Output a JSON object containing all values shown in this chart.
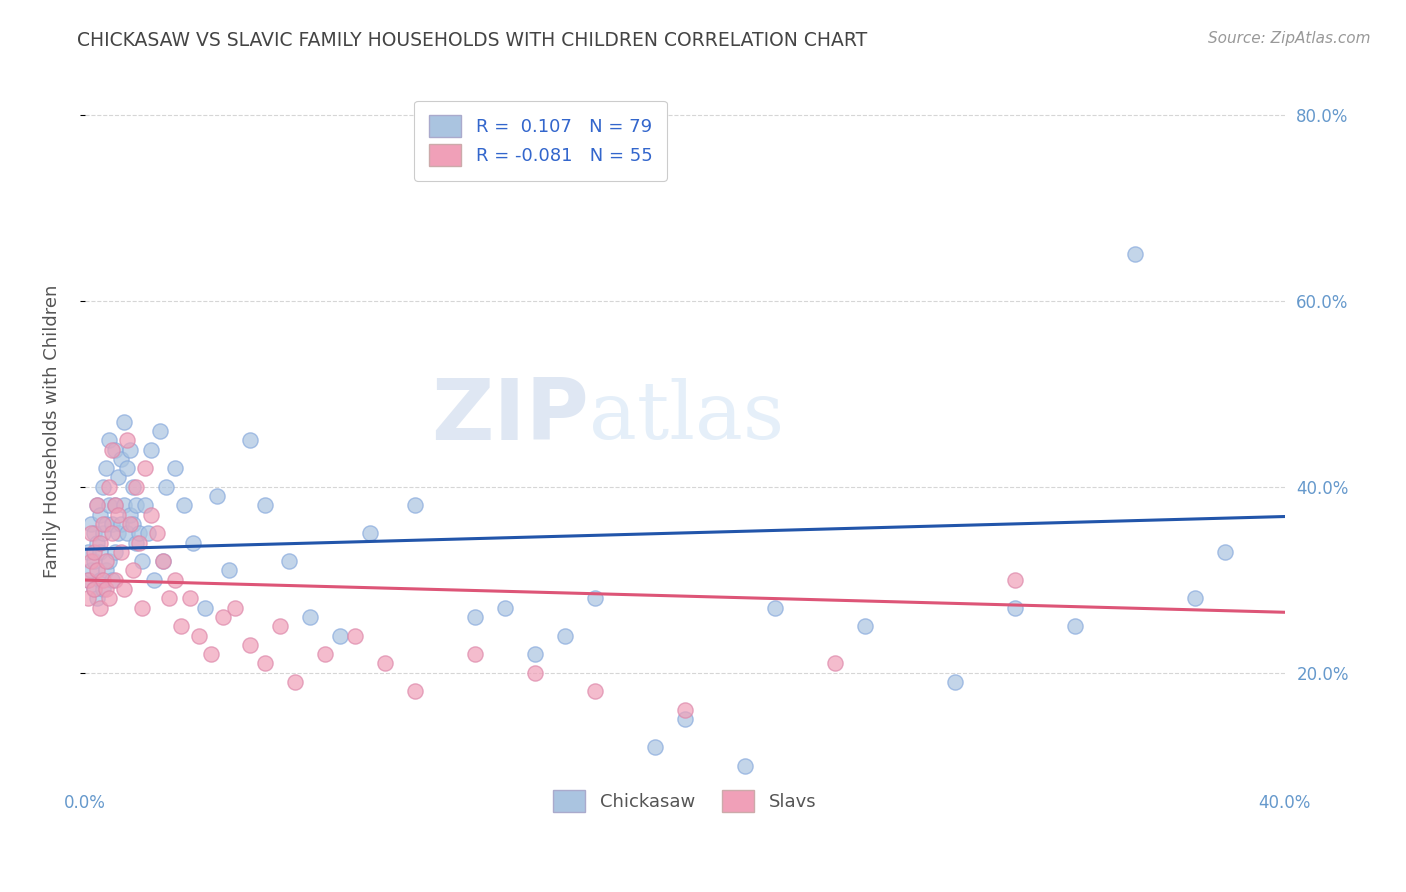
{
  "title": "CHICKASAW VS SLAVIC FAMILY HOUSEHOLDS WITH CHILDREN CORRELATION CHART",
  "source": "Source: ZipAtlas.com",
  "ylabel": "Family Households with Children",
  "xlim": [
    0.0,
    0.4
  ],
  "ylim": [
    0.08,
    0.84
  ],
  "xticks": [
    0.0,
    0.4
  ],
  "xtick_labels": [
    "0.0%",
    "40.0%"
  ],
  "yticks": [
    0.2,
    0.4,
    0.6,
    0.8
  ],
  "ytick_labels": [
    "20.0%",
    "40.0%",
    "60.0%",
    "80.0%"
  ],
  "chickasaw_color": "#aac4e0",
  "slavic_color": "#f0a0b8",
  "chickasaw_line_color": "#2255aa",
  "slavic_line_color": "#dd5577",
  "chickasaw_R": 0.107,
  "chickasaw_N": 79,
  "slavic_R": -0.081,
  "slavic_N": 55,
  "legend_R_color": "#3366cc",
  "watermark_zip": "ZIP",
  "watermark_atlas": "atlas",
  "background_color": "#ffffff",
  "grid_color": "#cccccc",
  "title_color": "#444444",
  "axis_label_color": "#6699cc",
  "ylabel_color": "#555555",
  "chickasaw_x": [
    0.001,
    0.001,
    0.002,
    0.002,
    0.003,
    0.003,
    0.003,
    0.004,
    0.004,
    0.004,
    0.005,
    0.005,
    0.005,
    0.006,
    0.006,
    0.006,
    0.007,
    0.007,
    0.007,
    0.008,
    0.008,
    0.008,
    0.009,
    0.009,
    0.01,
    0.01,
    0.01,
    0.011,
    0.011,
    0.012,
    0.012,
    0.013,
    0.013,
    0.014,
    0.014,
    0.015,
    0.015,
    0.016,
    0.016,
    0.017,
    0.017,
    0.018,
    0.019,
    0.02,
    0.021,
    0.022,
    0.023,
    0.025,
    0.026,
    0.027,
    0.03,
    0.033,
    0.036,
    0.04,
    0.044,
    0.048,
    0.055,
    0.06,
    0.068,
    0.075,
    0.085,
    0.095,
    0.11,
    0.13,
    0.15,
    0.17,
    0.2,
    0.23,
    0.26,
    0.29,
    0.14,
    0.16,
    0.19,
    0.22,
    0.31,
    0.33,
    0.35,
    0.37,
    0.38
  ],
  "chickasaw_y": [
    0.3,
    0.33,
    0.31,
    0.36,
    0.29,
    0.32,
    0.35,
    0.28,
    0.34,
    0.38,
    0.3,
    0.33,
    0.37,
    0.29,
    0.35,
    0.4,
    0.31,
    0.36,
    0.42,
    0.32,
    0.38,
    0.45,
    0.3,
    0.36,
    0.33,
    0.38,
    0.44,
    0.35,
    0.41,
    0.36,
    0.43,
    0.38,
    0.47,
    0.35,
    0.42,
    0.37,
    0.44,
    0.36,
    0.4,
    0.34,
    0.38,
    0.35,
    0.32,
    0.38,
    0.35,
    0.44,
    0.3,
    0.46,
    0.32,
    0.4,
    0.42,
    0.38,
    0.34,
    0.27,
    0.39,
    0.31,
    0.45,
    0.38,
    0.32,
    0.26,
    0.24,
    0.35,
    0.38,
    0.26,
    0.22,
    0.28,
    0.15,
    0.27,
    0.25,
    0.19,
    0.27,
    0.24,
    0.12,
    0.1,
    0.27,
    0.25,
    0.65,
    0.28,
    0.33
  ],
  "slavic_x": [
    0.001,
    0.001,
    0.002,
    0.002,
    0.003,
    0.003,
    0.004,
    0.004,
    0.005,
    0.005,
    0.006,
    0.006,
    0.007,
    0.007,
    0.008,
    0.008,
    0.009,
    0.009,
    0.01,
    0.01,
    0.011,
    0.012,
    0.013,
    0.014,
    0.015,
    0.016,
    0.017,
    0.018,
    0.019,
    0.02,
    0.022,
    0.024,
    0.026,
    0.028,
    0.03,
    0.032,
    0.035,
    0.038,
    0.042,
    0.046,
    0.05,
    0.055,
    0.06,
    0.065,
    0.07,
    0.08,
    0.09,
    0.1,
    0.11,
    0.13,
    0.15,
    0.17,
    0.2,
    0.25,
    0.31
  ],
  "slavic_y": [
    0.3,
    0.28,
    0.32,
    0.35,
    0.29,
    0.33,
    0.31,
    0.38,
    0.27,
    0.34,
    0.3,
    0.36,
    0.29,
    0.32,
    0.4,
    0.28,
    0.35,
    0.44,
    0.3,
    0.38,
    0.37,
    0.33,
    0.29,
    0.45,
    0.36,
    0.31,
    0.4,
    0.34,
    0.27,
    0.42,
    0.37,
    0.35,
    0.32,
    0.28,
    0.3,
    0.25,
    0.28,
    0.24,
    0.22,
    0.26,
    0.27,
    0.23,
    0.21,
    0.25,
    0.19,
    0.22,
    0.24,
    0.21,
    0.18,
    0.22,
    0.2,
    0.18,
    0.16,
    0.21,
    0.3
  ]
}
